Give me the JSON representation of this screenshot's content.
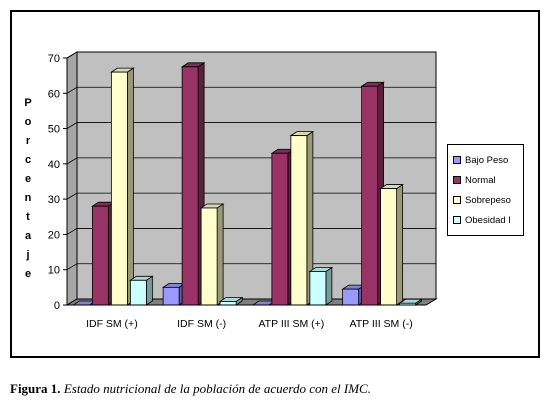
{
  "caption": {
    "label": "Figura 1.",
    "text": "Estado nutricional de la población de acuerdo con el IMC."
  },
  "colors": {
    "wall": "#c0c0c0",
    "floor": "#808080",
    "Bajo Peso": "#9999ff",
    "Normal": "#993366",
    "Sobrepeso": "#ffffcc",
    "Obesidad I": "#ccffff"
  },
  "chart_data": {
    "type": "bar",
    "title": "",
    "xlabel": "",
    "ylabel": "Porcentaje",
    "ylim": [
      0,
      70
    ],
    "yticks": [
      0,
      10,
      20,
      30,
      40,
      50,
      60,
      70
    ],
    "grid": true,
    "legend_position": "right",
    "categories": [
      "IDF SM (+)",
      "IDF SM (-)",
      "ATP III SM (+)",
      "ATP III SM (-)"
    ],
    "series": [
      {
        "name": "Bajo Peso",
        "values": [
          0,
          5,
          0,
          4.5
        ]
      },
      {
        "name": "Normal",
        "values": [
          28,
          67.5,
          43,
          62
        ]
      },
      {
        "name": "Sobrepeso",
        "values": [
          66,
          27.5,
          48,
          33
        ]
      },
      {
        "name": "Obesidad I",
        "values": [
          7,
          1,
          9.5,
          0.5
        ]
      }
    ]
  }
}
